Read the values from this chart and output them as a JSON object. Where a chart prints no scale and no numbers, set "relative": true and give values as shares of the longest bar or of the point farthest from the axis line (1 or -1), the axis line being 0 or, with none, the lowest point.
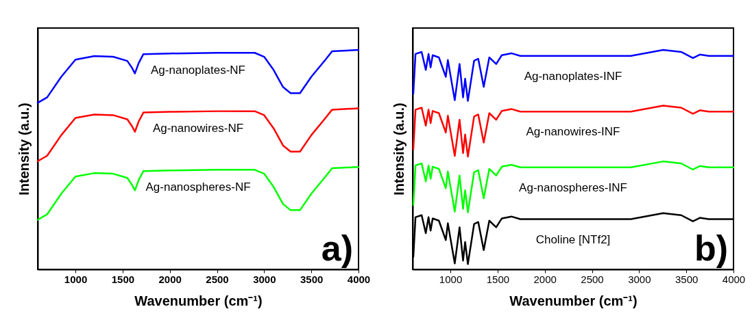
{
  "chart_data": [
    {
      "type": "line",
      "xlabel": "Wavenumber (cm⁻¹)",
      "ylabel": "Intensity (a.u.)",
      "relative": true,
      "tick_labels": "x",
      "xlim": [
        600,
        4000
      ],
      "xticks": [
        1000,
        1500,
        2000,
        2500,
        3000,
        3500,
        4000
      ],
      "annotations": [
        "a)"
      ],
      "x": [
        600,
        700,
        850,
        1000,
        1200,
        1400,
        1550,
        1600,
        1630,
        1670,
        1720,
        2000,
        2500,
        2900,
        3000,
        3100,
        3200,
        3280,
        3380,
        3500,
        3650,
        3720,
        4000
      ],
      "series": [
        {
          "name": "Ag-nanoplates-NF",
          "color": "#0000ff",
          "values": [
            0.759,
            0.784,
            0.878,
            0.956,
            0.972,
            0.969,
            0.95,
            0.918,
            0.893,
            0.94,
            0.981,
            0.984,
            0.987,
            0.987,
            0.969,
            0.909,
            0.831,
            0.803,
            0.803,
            0.878,
            0.956,
            0.994,
            1.0
          ]
        },
        {
          "name": "Ag-nanowires-NF",
          "color": "#ff0000",
          "values": [
            0.493,
            0.518,
            0.612,
            0.69,
            0.706,
            0.703,
            0.684,
            0.652,
            0.627,
            0.674,
            0.715,
            0.718,
            0.721,
            0.721,
            0.703,
            0.643,
            0.565,
            0.537,
            0.537,
            0.612,
            0.69,
            0.728,
            0.734
          ]
        },
        {
          "name": "Ag-nanospheres-NF",
          "color": "#00ff00",
          "values": [
            0.226,
            0.251,
            0.345,
            0.423,
            0.439,
            0.436,
            0.417,
            0.385,
            0.36,
            0.407,
            0.448,
            0.451,
            0.454,
            0.454,
            0.436,
            0.376,
            0.298,
            0.27,
            0.27,
            0.345,
            0.423,
            0.461,
            0.467
          ]
        }
      ]
    },
    {
      "type": "line",
      "xlabel": "Wavenumber (cm⁻¹)",
      "ylabel": "Intensity (a.u.)",
      "relative": true,
      "tick_labels": "x",
      "xlim": [
        600,
        4000
      ],
      "xticks": [
        1000,
        1500,
        2000,
        2500,
        3000,
        3500,
        4000
      ],
      "annotations": [
        "b)"
      ],
      "x": [
        607,
        630,
        695,
        739,
        768,
        790,
        812,
        878,
        951,
        973,
        1046,
        1097,
        1134,
        1156,
        1185,
        1251,
        1295,
        1353,
        1412,
        1485,
        1544,
        1646,
        1741,
        2912,
        3255,
        3446,
        3570,
        3643,
        3738,
        4000
      ],
      "series": [
        {
          "name": "Ag-nanoplates-INF",
          "color": "#0000ff",
          "values": [
            0.802,
            0.982,
            0.991,
            0.909,
            0.982,
            0.921,
            0.976,
            0.966,
            0.878,
            0.954,
            0.771,
            0.936,
            0.784,
            0.869,
            0.768,
            0.951,
            0.96,
            0.832,
            0.966,
            0.936,
            0.976,
            0.985,
            0.973,
            0.973,
            1.0,
            0.991,
            0.963,
            0.979,
            0.973,
            0.973
          ]
        },
        {
          "name": "Ag-nanowires-INF",
          "color": "#ff0000",
          "values": [
            0.548,
            0.728,
            0.737,
            0.655,
            0.728,
            0.667,
            0.722,
            0.712,
            0.624,
            0.7,
            0.517,
            0.682,
            0.53,
            0.615,
            0.514,
            0.697,
            0.706,
            0.578,
            0.712,
            0.682,
            0.722,
            0.731,
            0.719,
            0.719,
            0.746,
            0.737,
            0.709,
            0.725,
            0.719,
            0.719
          ]
        },
        {
          "name": "Ag-nanospheres-INF",
          "color": "#00ff00",
          "values": [
            0.294,
            0.474,
            0.483,
            0.401,
            0.474,
            0.413,
            0.468,
            0.458,
            0.37,
            0.446,
            0.263,
            0.428,
            0.276,
            0.361,
            0.26,
            0.443,
            0.452,
            0.324,
            0.458,
            0.428,
            0.468,
            0.477,
            0.465,
            0.465,
            0.492,
            0.483,
            0.455,
            0.471,
            0.465,
            0.465
          ]
        },
        {
          "name": "Choline [NTf2]",
          "color": "#000000",
          "values": [
            0.058,
            0.238,
            0.247,
            0.165,
            0.238,
            0.177,
            0.232,
            0.222,
            0.134,
            0.21,
            0.027,
            0.192,
            0.04,
            0.125,
            0.024,
            0.207,
            0.216,
            0.088,
            0.222,
            0.192,
            0.232,
            0.241,
            0.229,
            0.229,
            0.256,
            0.247,
            0.219,
            0.235,
            0.229,
            0.229
          ]
        }
      ]
    }
  ]
}
